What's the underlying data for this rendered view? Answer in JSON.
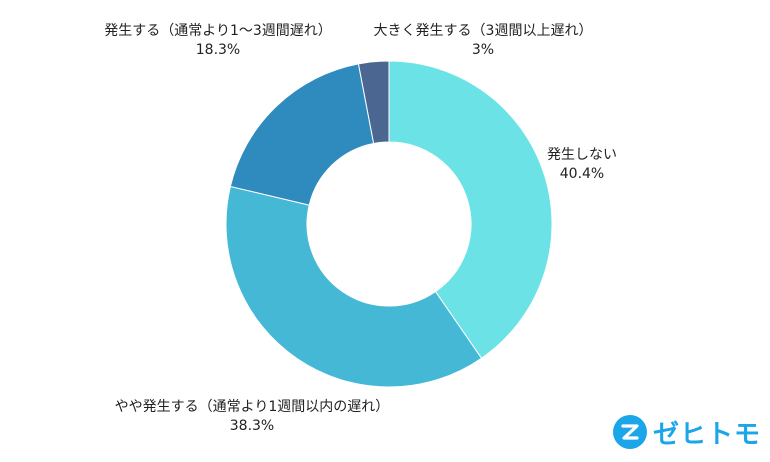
{
  "chart_data": {
    "type": "pie",
    "donut": true,
    "categories": [
      "発生しない",
      "やや発生する（通常より1週間以内の遅れ）",
      "発生する（通常より1〜3週間遅れ）",
      "大きく発生する（3週間以上遅れ）"
    ],
    "values": [
      40.4,
      38.3,
      18.3,
      3
    ],
    "value_labels": [
      "40.4%",
      "38.3%",
      "18.3%",
      "3%"
    ],
    "colors": [
      "#6be3e6",
      "#45b8d6",
      "#2f8bbd",
      "#4b6791"
    ],
    "start_angle_deg": 0,
    "direction": "clockwise"
  },
  "branding": {
    "logo_text": "ゼヒトモ",
    "logo_color": "#1aa6e8",
    "logo_icon": "zehitomo-z-icon"
  }
}
